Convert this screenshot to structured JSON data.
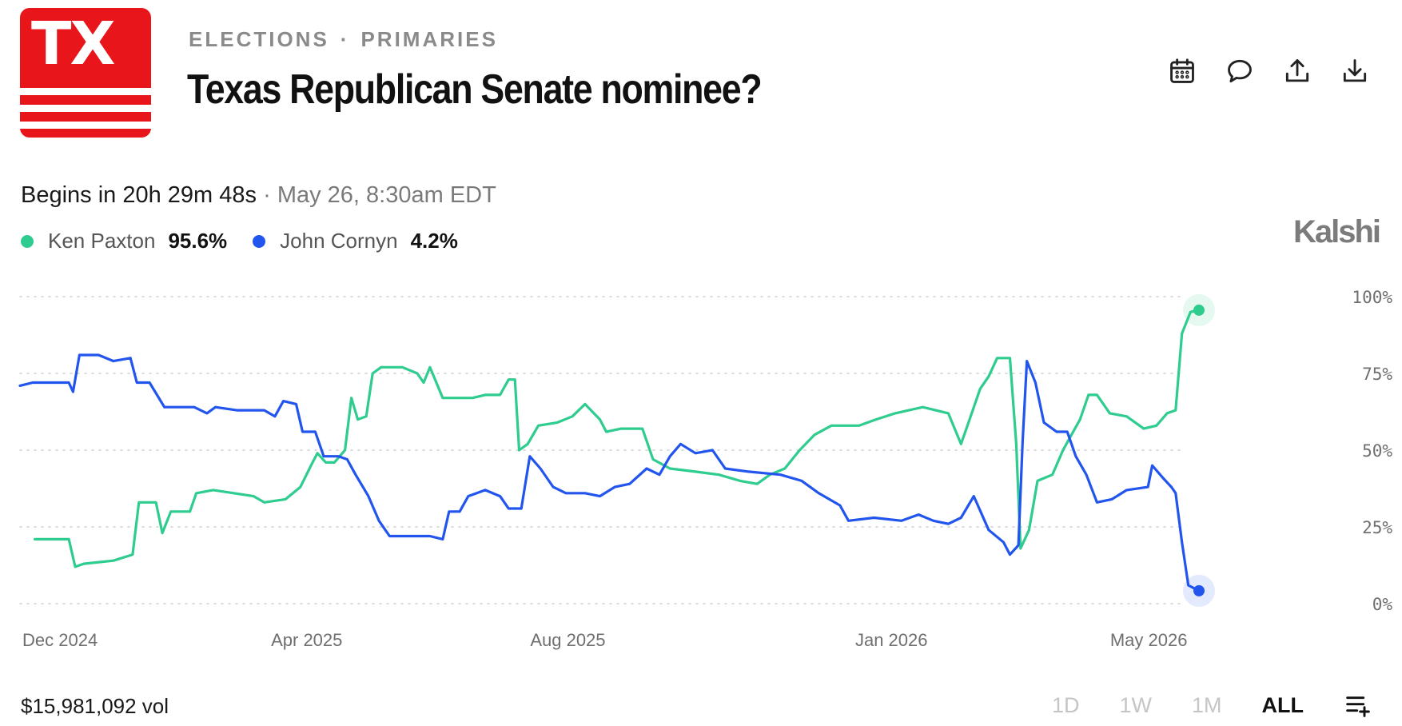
{
  "header": {
    "logo_text": "TX",
    "breadcrumb": [
      "ELECTIONS",
      "PRIMARIES"
    ],
    "breadcrumb_sep": "·",
    "title": "Texas Republican Senate nominee?",
    "icons": [
      "calendar-icon",
      "comment-icon",
      "share-icon",
      "download-icon"
    ]
  },
  "status": {
    "countdown": "Begins in 20h 29m 48s",
    "separator": "·",
    "date": "May 26, 8:30am EDT"
  },
  "brand": "Kalshi",
  "colors": {
    "paxton": "#2ecc8e",
    "cornyn": "#2255ee",
    "logo": "#e8151b",
    "grid": "#cfcfcf"
  },
  "footer": {
    "volume": "$15,981,092 vol",
    "ranges": [
      "1D",
      "1W",
      "1M",
      "ALL"
    ],
    "active_range": "ALL"
  },
  "chart_data": {
    "type": "line",
    "x_range": [
      "2024-11-15",
      "2026-05-24"
    ],
    "ylim": [
      0,
      100
    ],
    "y_ticks": [
      "0%",
      "25%",
      "50%",
      "75%",
      "100%"
    ],
    "x_ticks": [
      {
        "label": "Dec 2024",
        "date": "2024-12-01"
      },
      {
        "label": "Apr 2025",
        "date": "2025-04-01"
      },
      {
        "label": "Aug 2025",
        "date": "2025-08-01"
      },
      {
        "label": "Jan 2026",
        "date": "2026-01-01"
      },
      {
        "label": "May 2026",
        "date": "2026-05-01"
      }
    ],
    "legend_position": "top-left",
    "grid": true,
    "series": [
      {
        "name": "Ken Paxton",
        "current": "95.6%",
        "points": [
          [
            "2024-11-22",
            21
          ],
          [
            "2024-12-08",
            21
          ],
          [
            "2024-12-11",
            12
          ],
          [
            "2024-12-15",
            13
          ],
          [
            "2024-12-29",
            14
          ],
          [
            "2025-01-07",
            16
          ],
          [
            "2025-01-10",
            33
          ],
          [
            "2025-01-18",
            33
          ],
          [
            "2025-01-21",
            23
          ],
          [
            "2025-01-25",
            30
          ],
          [
            "2025-02-03",
            30
          ],
          [
            "2025-02-06",
            36
          ],
          [
            "2025-02-14",
            37
          ],
          [
            "2025-03-05",
            35
          ],
          [
            "2025-03-10",
            33
          ],
          [
            "2025-03-20",
            34
          ],
          [
            "2025-03-27",
            38
          ],
          [
            "2025-04-01",
            45
          ],
          [
            "2025-04-04",
            49
          ],
          [
            "2025-04-08",
            46
          ],
          [
            "2025-04-12",
            46
          ],
          [
            "2025-04-17",
            50
          ],
          [
            "2025-04-20",
            67
          ],
          [
            "2025-04-23",
            60
          ],
          [
            "2025-04-27",
            61
          ],
          [
            "2025-04-30",
            75
          ],
          [
            "2025-05-04",
            77
          ],
          [
            "2025-05-14",
            77
          ],
          [
            "2025-05-21",
            75
          ],
          [
            "2025-05-24",
            72
          ],
          [
            "2025-05-27",
            77
          ],
          [
            "2025-06-02",
            67
          ],
          [
            "2025-06-10",
            67
          ],
          [
            "2025-06-16",
            67
          ],
          [
            "2025-06-22",
            68
          ],
          [
            "2025-06-29",
            68
          ],
          [
            "2025-07-03",
            73
          ],
          [
            "2025-07-06",
            73
          ],
          [
            "2025-07-08",
            50
          ],
          [
            "2025-07-12",
            52
          ],
          [
            "2025-07-17",
            58
          ],
          [
            "2025-07-26",
            59
          ],
          [
            "2025-08-02",
            61
          ],
          [
            "2025-08-08",
            65
          ],
          [
            "2025-08-15",
            60
          ],
          [
            "2025-08-18",
            56
          ],
          [
            "2025-08-25",
            57
          ],
          [
            "2025-09-04",
            57
          ],
          [
            "2025-09-09",
            47
          ],
          [
            "2025-09-17",
            44
          ],
          [
            "2025-09-29",
            43
          ],
          [
            "2025-10-10",
            42
          ],
          [
            "2025-10-20",
            40
          ],
          [
            "2025-10-28",
            39
          ],
          [
            "2025-11-03",
            42
          ],
          [
            "2025-11-10",
            44
          ],
          [
            "2025-11-17",
            50
          ],
          [
            "2025-11-24",
            55
          ],
          [
            "2025-12-02",
            58
          ],
          [
            "2025-12-15",
            58
          ],
          [
            "2025-12-23",
            60
          ],
          [
            "2026-01-01",
            62
          ],
          [
            "2026-01-14",
            64
          ],
          [
            "2026-01-26",
            62
          ],
          [
            "2026-02-01",
            52
          ],
          [
            "2026-02-05",
            60
          ],
          [
            "2026-02-10",
            70
          ],
          [
            "2026-02-14",
            74
          ],
          [
            "2026-02-18",
            80
          ],
          [
            "2026-02-24",
            80
          ],
          [
            "2026-02-27",
            52
          ],
          [
            "2026-03-01",
            18
          ],
          [
            "2026-03-05",
            24
          ],
          [
            "2026-03-09",
            40
          ],
          [
            "2026-03-16",
            42
          ],
          [
            "2026-03-21",
            50
          ],
          [
            "2026-03-25",
            55
          ],
          [
            "2026-03-29",
            60
          ],
          [
            "2026-04-02",
            68
          ],
          [
            "2026-04-06",
            68
          ],
          [
            "2026-04-12",
            62
          ],
          [
            "2026-04-20",
            61
          ],
          [
            "2026-04-28",
            57
          ],
          [
            "2026-05-04",
            58
          ],
          [
            "2026-05-09",
            62
          ],
          [
            "2026-05-13",
            63
          ],
          [
            "2026-05-16",
            88
          ],
          [
            "2026-05-20",
            95
          ],
          [
            "2026-05-24",
            95.6
          ]
        ]
      },
      {
        "name": "John Cornyn",
        "current": "4.2%",
        "points": [
          [
            "2024-11-15",
            71
          ],
          [
            "2024-11-21",
            72
          ],
          [
            "2024-12-08",
            72
          ],
          [
            "2024-12-10",
            69
          ],
          [
            "2024-12-13",
            81
          ],
          [
            "2024-12-22",
            81
          ],
          [
            "2024-12-29",
            79
          ],
          [
            "2025-01-06",
            80
          ],
          [
            "2025-01-09",
            72
          ],
          [
            "2025-01-15",
            72
          ],
          [
            "2025-01-22",
            64
          ],
          [
            "2025-02-05",
            64
          ],
          [
            "2025-02-11",
            62
          ],
          [
            "2025-02-15",
            64
          ],
          [
            "2025-02-25",
            63
          ],
          [
            "2025-03-10",
            63
          ],
          [
            "2025-03-15",
            61
          ],
          [
            "2025-03-19",
            66
          ],
          [
            "2025-03-25",
            65
          ],
          [
            "2025-03-28",
            56
          ],
          [
            "2025-04-03",
            56
          ],
          [
            "2025-04-07",
            48
          ],
          [
            "2025-04-14",
            48
          ],
          [
            "2025-04-18",
            47
          ],
          [
            "2025-04-22",
            42
          ],
          [
            "2025-04-28",
            35
          ],
          [
            "2025-05-03",
            27
          ],
          [
            "2025-05-08",
            22
          ],
          [
            "2025-05-20",
            22
          ],
          [
            "2025-05-27",
            22
          ],
          [
            "2025-06-02",
            21
          ],
          [
            "2025-06-05",
            30
          ],
          [
            "2025-06-10",
            30
          ],
          [
            "2025-06-14",
            35
          ],
          [
            "2025-06-22",
            37
          ],
          [
            "2025-06-29",
            35
          ],
          [
            "2025-07-03",
            31
          ],
          [
            "2025-07-09",
            31
          ],
          [
            "2025-07-13",
            48
          ],
          [
            "2025-07-18",
            44
          ],
          [
            "2025-07-24",
            38
          ],
          [
            "2025-07-30",
            36
          ],
          [
            "2025-08-08",
            36
          ],
          [
            "2025-08-15",
            35
          ],
          [
            "2025-08-22",
            38
          ],
          [
            "2025-08-29",
            39
          ],
          [
            "2025-09-06",
            44
          ],
          [
            "2025-09-12",
            42
          ],
          [
            "2025-09-17",
            48
          ],
          [
            "2025-09-22",
            52
          ],
          [
            "2025-09-29",
            49
          ],
          [
            "2025-10-07",
            50
          ],
          [
            "2025-10-13",
            44
          ],
          [
            "2025-10-24",
            43
          ],
          [
            "2025-11-08",
            42
          ],
          [
            "2025-11-18",
            40
          ],
          [
            "2025-11-26",
            36
          ],
          [
            "2025-12-06",
            32
          ],
          [
            "2025-12-10",
            27
          ],
          [
            "2025-12-22",
            28
          ],
          [
            "2026-01-04",
            27
          ],
          [
            "2026-01-12",
            29
          ],
          [
            "2026-01-19",
            27
          ],
          [
            "2026-01-26",
            26
          ],
          [
            "2026-02-01",
            28
          ],
          [
            "2026-02-07",
            35
          ],
          [
            "2026-02-14",
            24
          ],
          [
            "2026-02-21",
            20
          ],
          [
            "2026-02-24",
            16
          ],
          [
            "2026-02-28",
            19
          ],
          [
            "2026-03-02",
            53
          ],
          [
            "2026-03-04",
            79
          ],
          [
            "2026-03-08",
            72
          ],
          [
            "2026-03-12",
            59
          ],
          [
            "2026-03-18",
            56
          ],
          [
            "2026-03-23",
            56
          ],
          [
            "2026-03-27",
            48
          ],
          [
            "2026-04-01",
            42
          ],
          [
            "2026-04-06",
            33
          ],
          [
            "2026-04-13",
            34
          ],
          [
            "2026-04-20",
            37
          ],
          [
            "2026-04-30",
            38
          ],
          [
            "2026-05-02",
            45
          ],
          [
            "2026-05-07",
            41
          ],
          [
            "2026-05-11",
            38
          ],
          [
            "2026-05-13",
            36
          ],
          [
            "2026-05-16",
            20
          ],
          [
            "2026-05-19",
            6
          ],
          [
            "2026-05-24",
            4.2
          ]
        ]
      }
    ]
  }
}
